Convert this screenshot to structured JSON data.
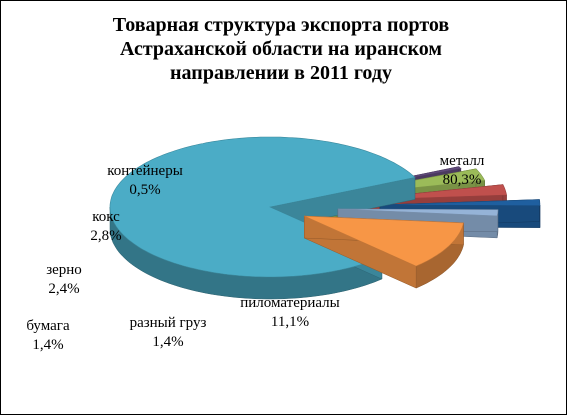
{
  "chart_data": {
    "type": "pie",
    "style": "3d-exploded",
    "title_lines": [
      "Товарная структура экспорта портов",
      "Астраханской области на иранском",
      "направлении в 2011 году"
    ],
    "legend": "none",
    "slices": [
      {
        "name": "металл",
        "value": 80.3,
        "label": "80,3%",
        "color": "#4BACC6"
      },
      {
        "name": "пиломатериалы",
        "value": 11.1,
        "label": "11,1%",
        "color": "#F79646"
      },
      {
        "name": "разный груз",
        "value": 1.4,
        "label": "1,4%",
        "color": "#95B3D7"
      },
      {
        "name": "бумага",
        "value": 1.4,
        "label": "1,4%",
        "color": "#1F5F9F"
      },
      {
        "name": "зерно",
        "value": 2.4,
        "label": "2,4%",
        "color": "#C0504D"
      },
      {
        "name": "кокс",
        "value": 2.8,
        "label": "2,8%",
        "color": "#9BBB59"
      },
      {
        "name": "контейнеры",
        "value": 0.5,
        "label": "0,5%",
        "color": "#604A7B"
      }
    ]
  }
}
